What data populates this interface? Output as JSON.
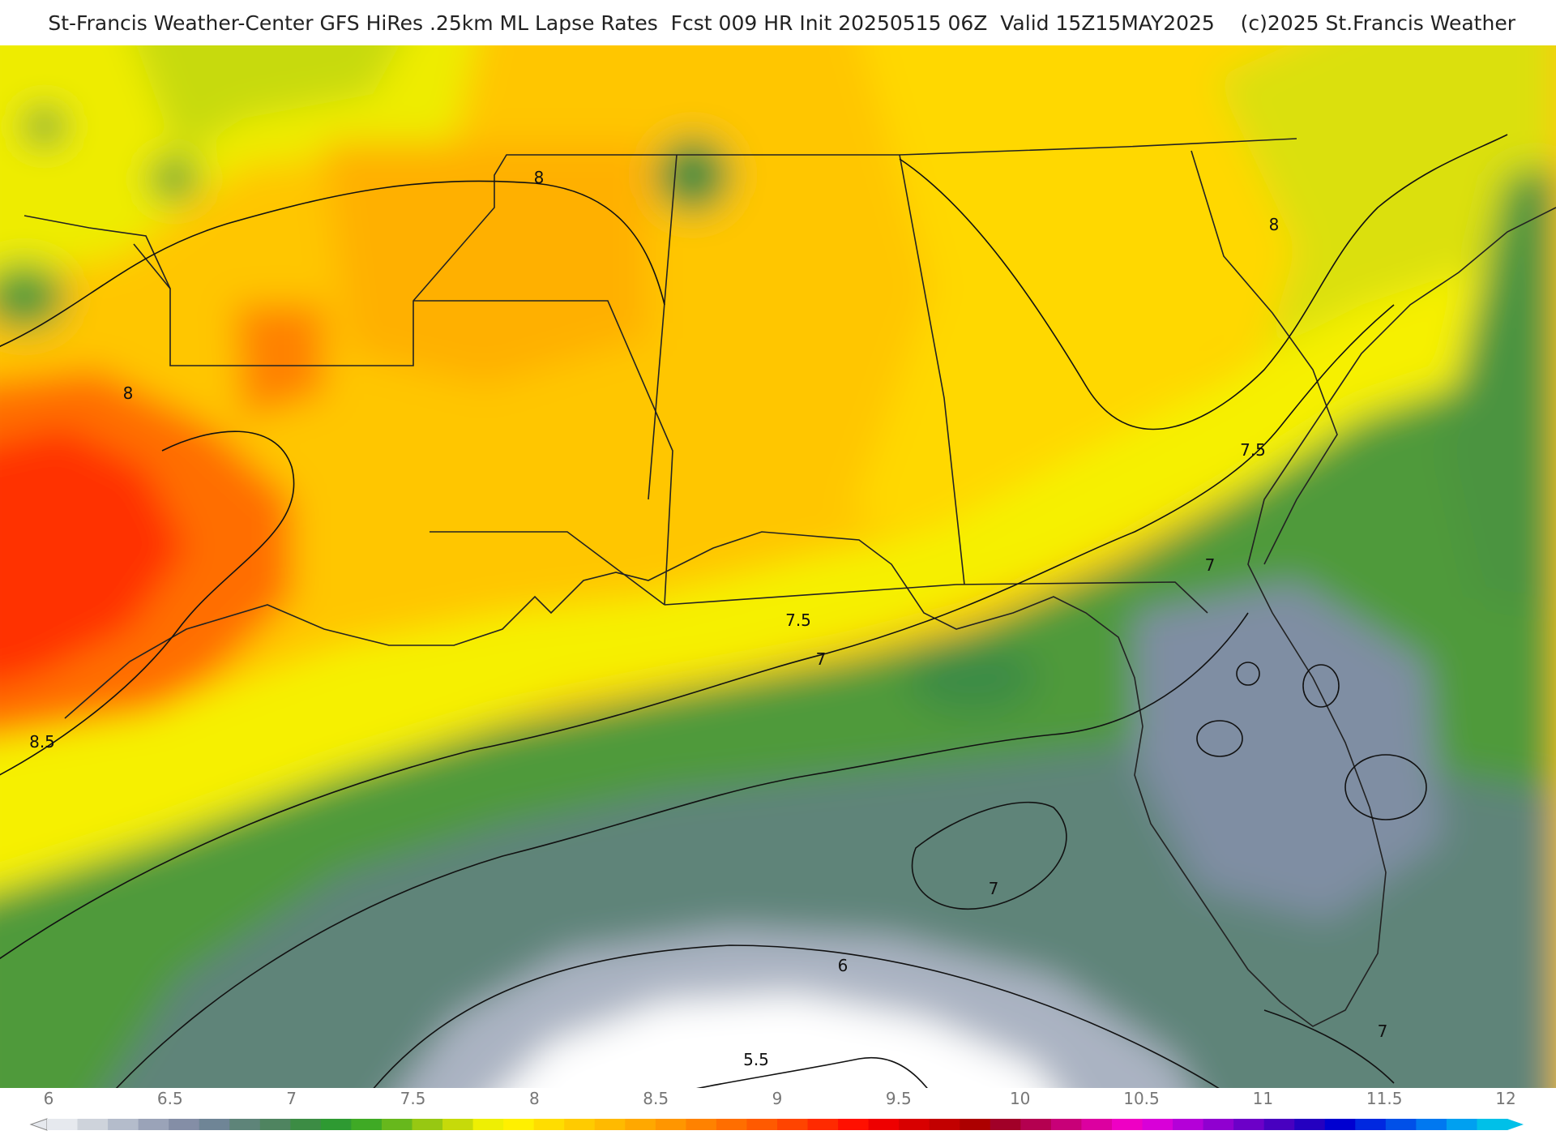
{
  "header": {
    "title": "St-Francis Weather-Center GFS HiRes .25km ML Lapse Rates  Fcst 009 HR Init 20250515 06Z  Valid 15Z15MAY2025    (c)2025 St.Francis Weather"
  },
  "contour_labels": [
    "8",
    "8",
    "8",
    "8.5",
    "7.5",
    "7.5",
    "7",
    "7",
    "7",
    "7",
    "6",
    "5.5"
  ],
  "colorbar": {
    "ticks": [
      "6",
      "6.5",
      "7",
      "7.5",
      "8",
      "8.5",
      "9",
      "9.5",
      "10",
      "10.5",
      "11",
      "11.5",
      "12"
    ],
    "colors": [
      "#e6e9ee",
      "#ced3db",
      "#b4bccb",
      "#9aa3b8",
      "#848ea6",
      "#6f8596",
      "#5e8479",
      "#4f8460",
      "#3c8c44",
      "#2e9a32",
      "#3faa25",
      "#67b81c",
      "#97c812",
      "#c6da0a",
      "#eeef03",
      "#fff000",
      "#ffdd00",
      "#ffcb00",
      "#ffba00",
      "#ffa800",
      "#ff9600",
      "#ff8200",
      "#ff6e00",
      "#ff5a00",
      "#ff4400",
      "#ff2a00",
      "#ff1000",
      "#ee0000",
      "#d80000",
      "#c20000",
      "#ac0000",
      "#a10028",
      "#b40050",
      "#c80078",
      "#dc00a0",
      "#ee00c4",
      "#d800d8",
      "#b400d8",
      "#9000d0",
      "#6c00c8",
      "#4800c0",
      "#2400c0",
      "#0000d0",
      "#0028e0",
      "#0050e8",
      "#0078f0",
      "#00a0f0",
      "#00c0e8"
    ]
  }
}
